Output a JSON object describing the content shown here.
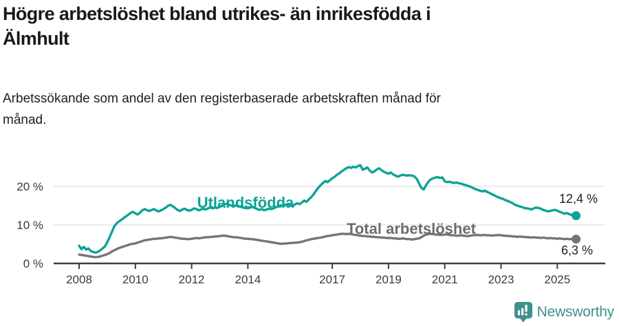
{
  "header": {
    "title_line1": "Högre arbetslöshet bland utrikes- än inrikesfödda i",
    "title_line2": "Älmhult",
    "subtitle_line1": "Arbetssökande som andel av den registerbaserade arbetskraften månad för",
    "subtitle_line2": "månad."
  },
  "footer": {
    "brand": "Newsworthy",
    "logo_icon": "bar-chart-pin-icon",
    "brand_color": "#3F918C"
  },
  "colors": {
    "series_utlandsfodda": "#0CA396",
    "series_total": "#757575",
    "gridline": "#d9d9d9",
    "axis": "#3d3d3d",
    "text": "#191919"
  },
  "chart_data": {
    "type": "line",
    "unit": "%",
    "x_start": 2008.0,
    "x_step_years": 0.0833333,
    "ylim": [
      0,
      27
    ],
    "grid": "horizontal",
    "legend_position": "inline-labels",
    "y_ticks": [
      {
        "value": 20,
        "label": "20 %"
      },
      {
        "value": 10,
        "label": "10 %"
      },
      {
        "value": 0,
        "label": "0 %"
      }
    ],
    "x_ticks": [
      {
        "year": 2008,
        "label": "2008"
      },
      {
        "year": 2010,
        "label": "2010"
      },
      {
        "year": 2012,
        "label": "2012"
      },
      {
        "year": 2014,
        "label": "2014"
      },
      {
        "year": 2017,
        "label": "2017"
      },
      {
        "year": 2019,
        "label": "2019"
      },
      {
        "year": 2021,
        "label": "2021"
      },
      {
        "year": 2023,
        "label": "2023"
      },
      {
        "year": 2025,
        "label": "2025"
      }
    ],
    "series": [
      {
        "name": "Utlandsfödda",
        "color": "#0CA396",
        "end_label": "12,4 %",
        "end_value": 12.4,
        "values": [
          4.6,
          3.7,
          4.3,
          3.6,
          3.9,
          3.2,
          3.0,
          2.8,
          3.0,
          3.4,
          3.9,
          4.4,
          5.5,
          6.8,
          8.2,
          9.6,
          10.4,
          10.9,
          11.3,
          11.8,
          12.2,
          12.7,
          13.1,
          13.4,
          13.0,
          12.7,
          13.2,
          13.8,
          14.1,
          13.8,
          13.6,
          13.9,
          14.1,
          13.7,
          13.5,
          13.8,
          14.1,
          14.5,
          15.0,
          15.2,
          14.8,
          14.4,
          13.9,
          13.6,
          14.0,
          14.2,
          13.9,
          13.7,
          13.9,
          14.3,
          14.1,
          13.8,
          14.0,
          14.2,
          14.0,
          14.3,
          14.5,
          14.3,
          14.5,
          14.4,
          14.7,
          15.0,
          15.3,
          15.5,
          15.2,
          15.0,
          14.8,
          15.1,
          14.9,
          14.7,
          14.5,
          14.4,
          14.3,
          14.5,
          14.7,
          14.4,
          14.1,
          13.9,
          14.1,
          13.8,
          14.0,
          14.2,
          14.1,
          14.3,
          14.6,
          14.8,
          15.1,
          14.9,
          15.2,
          15.4,
          15.1,
          14.9,
          15.3,
          15.6,
          15.4,
          15.8,
          16.3,
          16.0,
          16.6,
          17.2,
          17.9,
          18.8,
          19.6,
          20.3,
          20.9,
          21.4,
          21.1,
          21.6,
          22.1,
          22.5,
          23.0,
          23.4,
          23.9,
          24.3,
          24.7,
          25.0,
          24.8,
          25.1,
          24.9,
          25.3,
          25.5,
          24.3,
          24.6,
          24.9,
          24.1,
          23.6,
          23.9,
          24.4,
          24.7,
          24.2,
          23.8,
          23.5,
          23.3,
          23.6,
          23.1,
          22.8,
          22.5,
          22.8,
          23.0,
          22.9,
          22.8,
          22.9,
          22.8,
          22.6,
          22.0,
          20.8,
          19.6,
          19.2,
          20.3,
          21.2,
          21.8,
          22.1,
          22.3,
          22.4,
          22.2,
          22.3,
          21.3,
          21.1,
          21.2,
          21.0,
          20.9,
          21.0,
          20.8,
          20.7,
          20.5,
          20.3,
          20.1,
          19.9,
          19.6,
          19.3,
          19.1,
          18.9,
          18.7,
          18.9,
          18.6,
          18.3,
          18.0,
          17.7,
          17.4,
          17.1,
          16.9,
          16.7,
          16.4,
          16.2,
          15.9,
          15.6,
          15.2,
          15.0,
          14.8,
          14.6,
          14.4,
          14.3,
          14.2,
          14.0,
          14.3,
          14.5,
          14.4,
          14.2,
          13.9,
          13.7,
          13.5,
          13.6,
          13.8,
          13.9,
          13.7,
          13.4,
          13.2,
          12.9,
          13.1,
          12.8,
          12.6,
          12.7,
          12.4
        ]
      },
      {
        "name": "Total arbetslöshet",
        "color": "#757575",
        "end_label": "6,3 %",
        "end_value": 6.3,
        "values": [
          2.3,
          2.2,
          2.1,
          2.0,
          1.9,
          1.8,
          1.7,
          1.6,
          1.7,
          1.8,
          2.0,
          2.2,
          2.4,
          2.7,
          3.1,
          3.4,
          3.7,
          4.0,
          4.2,
          4.4,
          4.6,
          4.8,
          5.0,
          5.1,
          5.2,
          5.4,
          5.6,
          5.8,
          6.0,
          6.1,
          6.2,
          6.3,
          6.4,
          6.4,
          6.5,
          6.5,
          6.6,
          6.7,
          6.8,
          6.9,
          6.8,
          6.7,
          6.6,
          6.5,
          6.4,
          6.4,
          6.3,
          6.3,
          6.4,
          6.5,
          6.6,
          6.5,
          6.6,
          6.7,
          6.8,
          6.8,
          6.9,
          6.9,
          7.0,
          7.0,
          7.1,
          7.2,
          7.2,
          7.1,
          7.0,
          6.9,
          6.8,
          6.8,
          6.7,
          6.6,
          6.5,
          6.4,
          6.4,
          6.3,
          6.3,
          6.2,
          6.1,
          6.0,
          5.9,
          5.8,
          5.7,
          5.6,
          5.5,
          5.4,
          5.3,
          5.2,
          5.1,
          5.1,
          5.2,
          5.2,
          5.3,
          5.3,
          5.4,
          5.4,
          5.5,
          5.6,
          5.8,
          6.0,
          6.1,
          6.3,
          6.4,
          6.5,
          6.6,
          6.7,
          6.8,
          7.0,
          7.1,
          7.2,
          7.3,
          7.4,
          7.5,
          7.6,
          7.7,
          7.7,
          7.6,
          7.7,
          7.6,
          7.5,
          7.4,
          7.3,
          7.2,
          7.1,
          7.1,
          7.0,
          7.0,
          6.9,
          6.9,
          6.8,
          6.8,
          6.7,
          6.7,
          6.6,
          6.6,
          6.6,
          6.5,
          6.5,
          6.4,
          6.4,
          6.5,
          6.4,
          6.3,
          6.3,
          6.2,
          6.3,
          6.4,
          6.5,
          6.8,
          7.2,
          7.5,
          7.6,
          7.7,
          7.6,
          7.5,
          7.5,
          7.4,
          7.4,
          7.5,
          7.5,
          7.4,
          7.3,
          7.3,
          7.2,
          7.2,
          7.3,
          7.2,
          7.1,
          7.1,
          7.2,
          7.3,
          7.3,
          7.4,
          7.3,
          7.3,
          7.4,
          7.3,
          7.3,
          7.2,
          7.3,
          7.3,
          7.4,
          7.3,
          7.2,
          7.2,
          7.1,
          7.1,
          7.0,
          7.0,
          6.9,
          7.0,
          6.9,
          6.9,
          6.8,
          6.8,
          6.7,
          6.8,
          6.7,
          6.7,
          6.6,
          6.7,
          6.6,
          6.5,
          6.6,
          6.5,
          6.5,
          6.4,
          6.5,
          6.4,
          6.3,
          6.4,
          6.3,
          6.3,
          6.4,
          6.3
        ]
      }
    ]
  }
}
